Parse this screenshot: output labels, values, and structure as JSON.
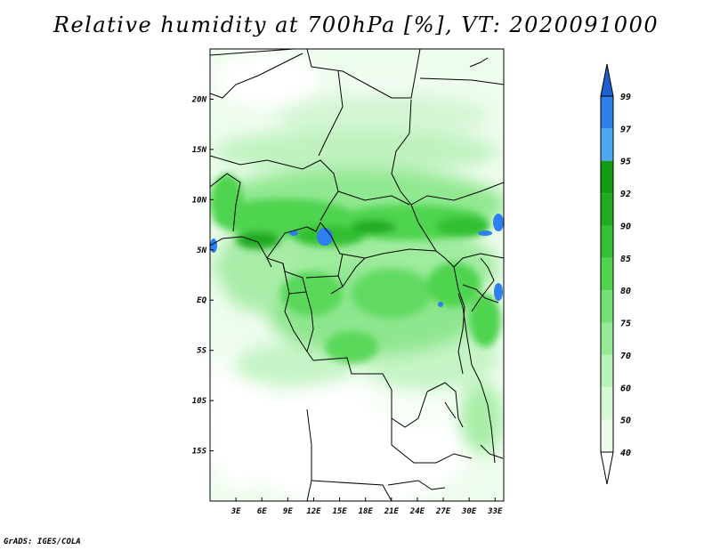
{
  "title": "Relative humidity at 700hPa [%], VT: 2020091000",
  "credit": "GrADS: IGES/COLA",
  "map": {
    "lon_ticks": [
      "3E",
      "6E",
      "9E",
      "12E",
      "15E",
      "18E",
      "21E",
      "24E",
      "27E",
      "30E",
      "33E"
    ],
    "lat_ticks": [
      "20N",
      "15N",
      "10N",
      "5N",
      "EQ",
      "5S",
      "10S",
      "15S"
    ],
    "lon_range": [
      0,
      34
    ],
    "lat_range": [
      -20,
      25
    ]
  },
  "colorbar": {
    "levels": [
      "99",
      "97",
      "95",
      "92",
      "90",
      "85",
      "80",
      "75",
      "70",
      "60",
      "50",
      "40"
    ],
    "colors": [
      "#1f5fcf",
      "#2f7fe8",
      "#4ca6f0",
      "#129a12",
      "#22aa22",
      "#33c033",
      "#4fd44f",
      "#72e072",
      "#96ea96",
      "#b8f2b8",
      "#d6f8d6",
      "#ecfcec",
      "#ffffff"
    ],
    "extends": "both"
  },
  "colors": {
    "land_base": "#eefcee",
    "frame": "#000000",
    "lakes": "#2e7ff0"
  }
}
